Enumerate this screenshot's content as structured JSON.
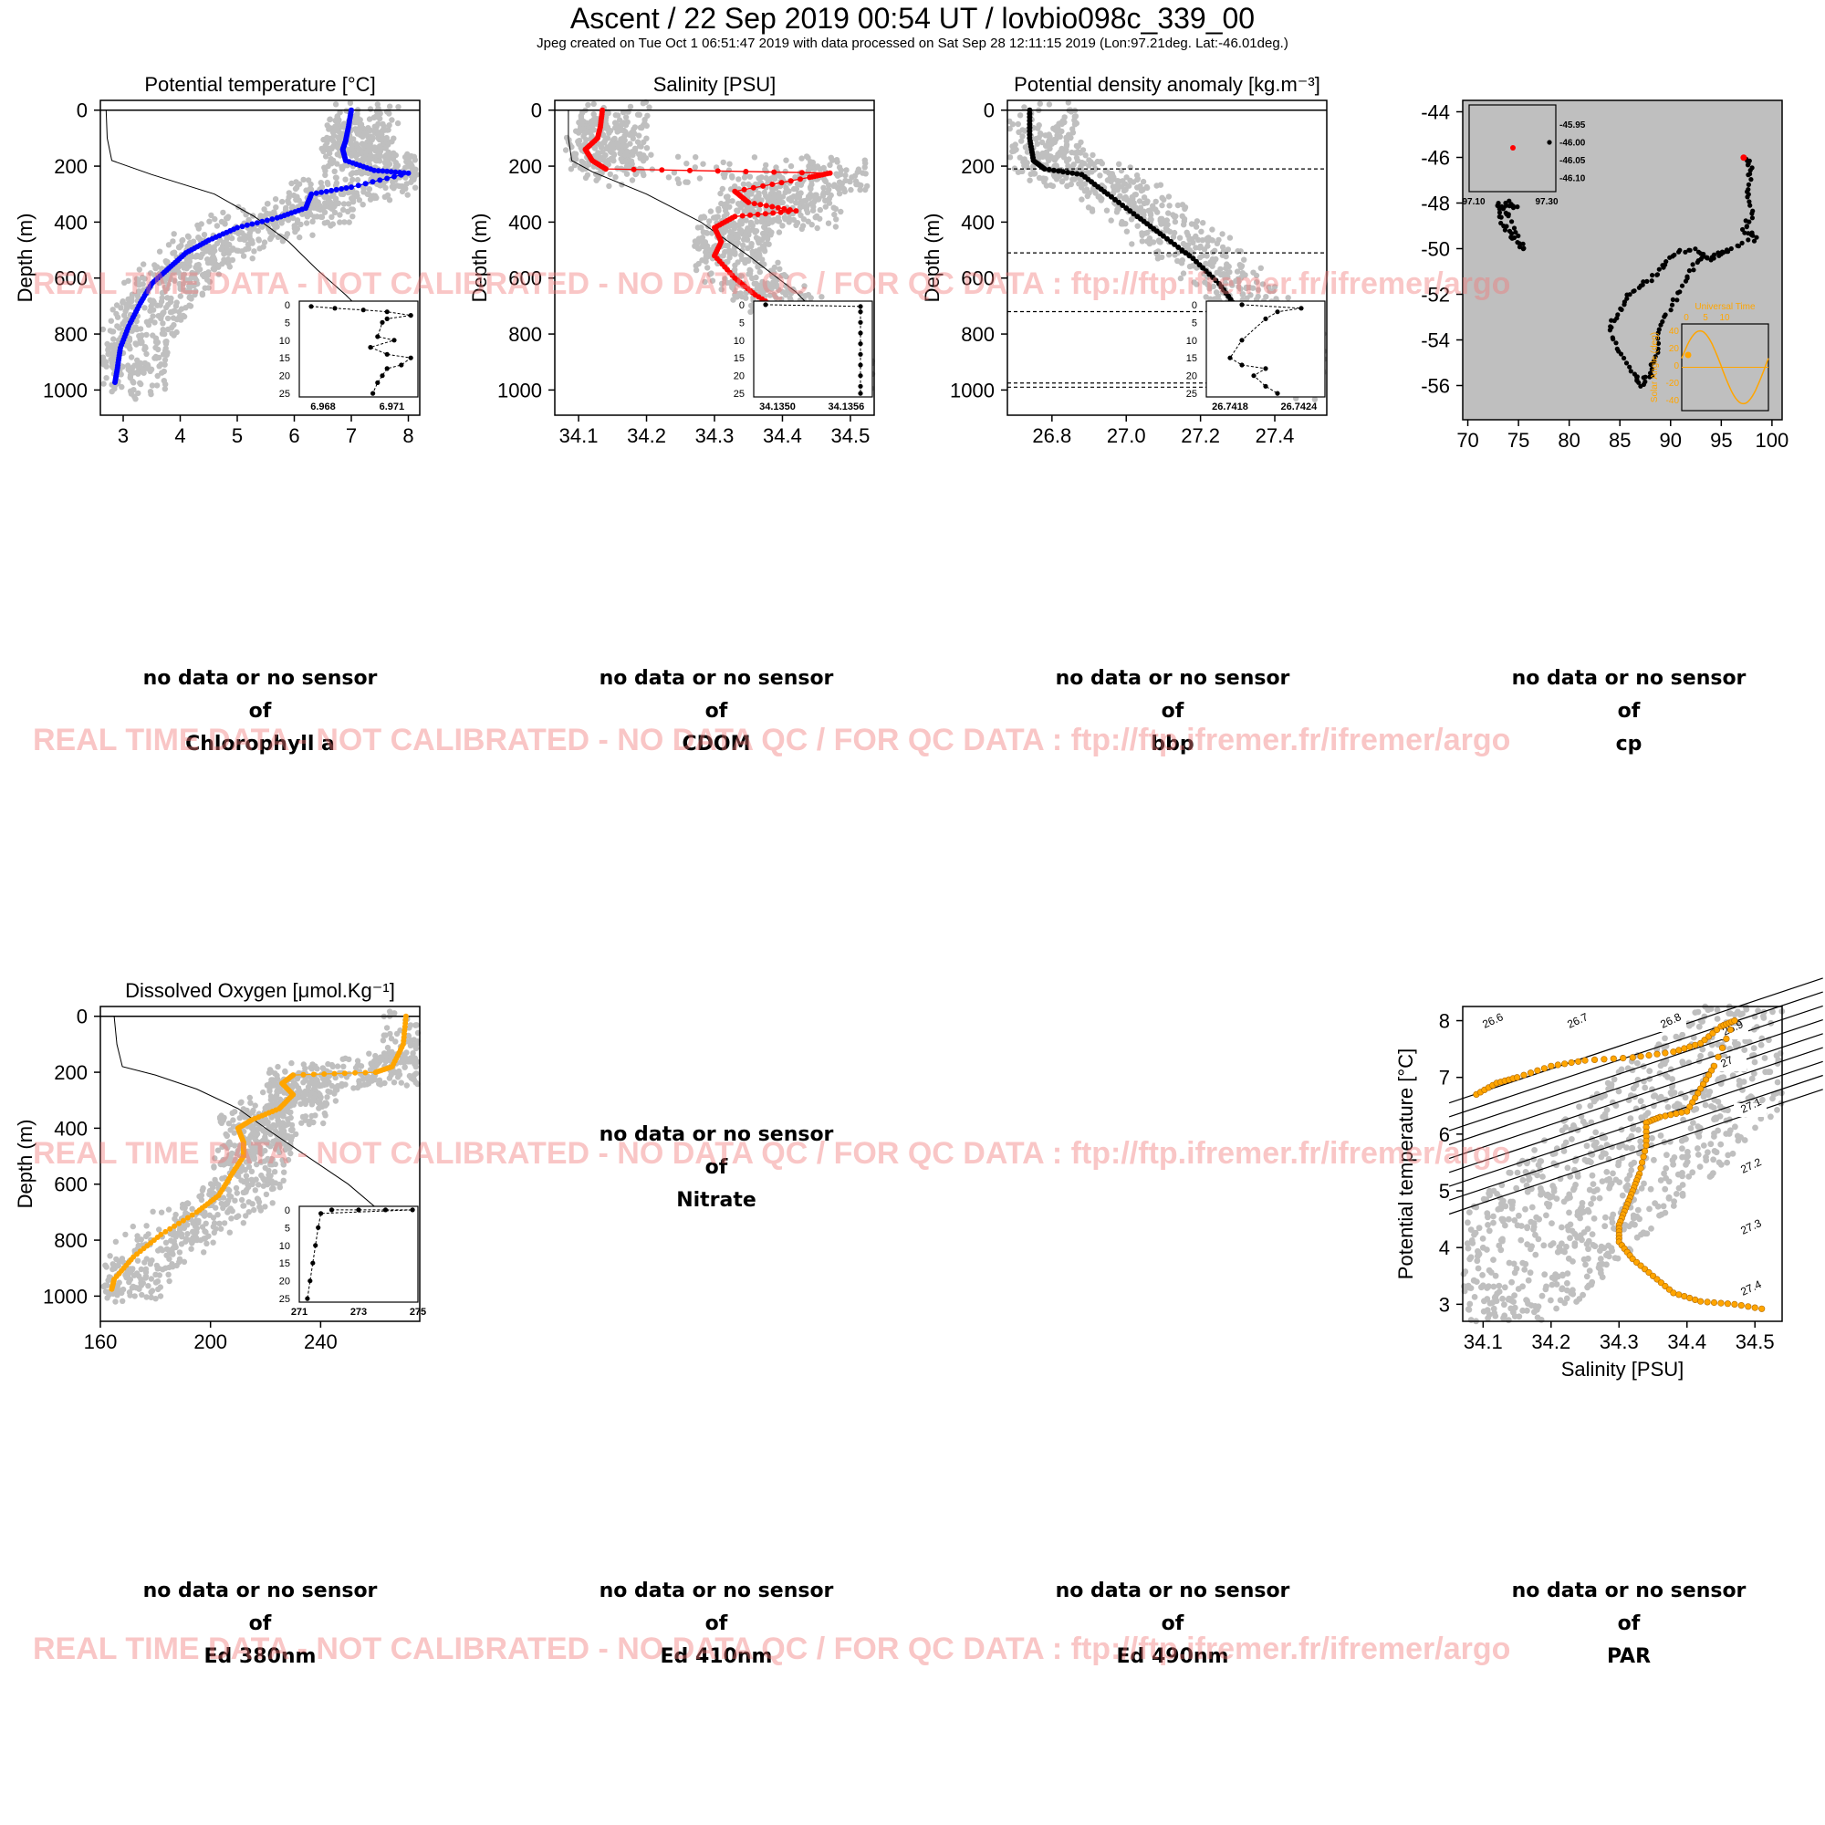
{
  "header": {
    "title": "Ascent / 22 Sep 2019 00:54 UT /  lovbio098c_339_00",
    "subtitle": "Jpeg created on Tue Oct  1 06:51:47 2019 with data processed on Sat Sep 28 12:11:15 2019 (Lon:97.21deg. Lat:-46.01deg.)"
  },
  "watermark": "REAL TIME DATA - NOT CALIBRATED - NO DATA QC   /  FOR QC DATA : ftp://ftp.ifremer.fr/ifremer/argo",
  "no_data": {
    "line1": "no data or no sensor",
    "line2": "of",
    "params": [
      "Chlorophyll a",
      "CDOM",
      "bbp",
      "cp",
      "Nitrate",
      "Ed 380nm",
      "Ed 410nm",
      "Ed 490nm",
      "PAR"
    ]
  },
  "colors": {
    "background": "#bfbfbf",
    "temperature": "#0000ff",
    "salinity": "#ff0000",
    "density": "#000000",
    "oxygen": "#ffa500",
    "watermark": "#f08080"
  },
  "chart_data": [
    {
      "id": "temp",
      "type": "scatter",
      "title": "Potential temperature [°C]",
      "ylabel": "Depth (m)",
      "xlim": [
        2.6,
        8.2
      ],
      "ylim": [
        1090,
        -35
      ],
      "ydir": "down",
      "xticks": [
        3,
        4,
        5,
        6,
        7,
        8
      ],
      "xticklabels": [
        "3",
        "4",
        "5",
        "6",
        "7",
        "8"
      ],
      "yticks": [
        0,
        200,
        400,
        600,
        800,
        1000
      ],
      "yticklabels": [
        "0",
        "200",
        "400",
        "600",
        "800",
        "1000"
      ],
      "color": "#0000ff",
      "profile": [
        [
          7.0,
          0
        ],
        [
          6.95,
          60
        ],
        [
          6.9,
          110
        ],
        [
          6.85,
          140
        ],
        [
          6.9,
          180
        ],
        [
          7.4,
          215
        ],
        [
          8.0,
          225
        ],
        [
          7.0,
          275
        ],
        [
          6.3,
          300
        ],
        [
          6.2,
          350
        ],
        [
          5.7,
          385
        ],
        [
          5.0,
          420
        ],
        [
          4.5,
          465
        ],
        [
          4.1,
          510
        ],
        [
          3.8,
          565
        ],
        [
          3.5,
          620
        ],
        [
          3.3,
          690
        ],
        [
          3.1,
          770
        ],
        [
          2.95,
          850
        ],
        [
          2.9,
          920
        ],
        [
          2.85,
          980
        ]
      ],
      "background": {
        "type": "cloud",
        "description_points": [
          [
            7.0,
            0
          ],
          [
            7.5,
            100
          ],
          [
            6.5,
            200
          ],
          [
            5.5,
            350
          ],
          [
            4.5,
            450
          ],
          [
            3.6,
            600
          ],
          [
            3.1,
            800
          ],
          [
            2.9,
            1000
          ]
        ]
      },
      "reference_line": [
        [
          2.7,
          0
        ],
        [
          2.72,
          100
        ],
        [
          2.8,
          180
        ],
        [
          3.5,
          230
        ],
        [
          4.6,
          300
        ],
        [
          5.3,
          380
        ],
        [
          5.9,
          470
        ],
        [
          6.4,
          570
        ],
        [
          6.9,
          660
        ],
        [
          7.4,
          760
        ]
      ],
      "inset": {
        "xlim": [
          6.9675,
          6.9725
        ],
        "ylim": [
          26,
          -1
        ],
        "xticklabels": [
          "6.968",
          "6.971"
        ],
        "yticklabels": [
          "0",
          "5",
          "10",
          "15",
          "20",
          "25"
        ],
        "points": [
          [
            6.968,
            0.5
          ],
          [
            6.969,
            1
          ],
          [
            6.9702,
            1.5
          ],
          [
            6.9712,
            2
          ],
          [
            6.9722,
            3
          ],
          [
            6.9712,
            4
          ],
          [
            6.971,
            5
          ],
          [
            6.9708,
            9
          ],
          [
            6.9715,
            10
          ],
          [
            6.9705,
            12
          ],
          [
            6.9712,
            14
          ],
          [
            6.9722,
            15
          ],
          [
            6.9718,
            17
          ],
          [
            6.9712,
            18
          ],
          [
            6.971,
            20
          ],
          [
            6.9708,
            22
          ],
          [
            6.9706,
            25
          ]
        ]
      }
    },
    {
      "id": "sal",
      "type": "scatter",
      "title": "Salinity [PSU]",
      "ylabel": "Depth (m)",
      "xlim": [
        34.065,
        34.535
      ],
      "ylim": [
        1090,
        -35
      ],
      "ydir": "down",
      "xticks": [
        34.1,
        34.2,
        34.3,
        34.4,
        34.5
      ],
      "xticklabels": [
        "34.1",
        "34.2",
        "34.3",
        "34.4",
        "34.5"
      ],
      "yticks": [
        0,
        200,
        400,
        600,
        800,
        1000
      ],
      "yticklabels": [
        "0",
        "200",
        "400",
        "600",
        "800",
        "1000"
      ],
      "color": "#ff0000",
      "profile": [
        [
          34.135,
          0
        ],
        [
          34.132,
          60
        ],
        [
          34.128,
          100
        ],
        [
          34.11,
          140
        ],
        [
          34.12,
          180
        ],
        [
          34.14,
          210
        ],
        [
          34.47,
          225
        ],
        [
          34.44,
          240
        ],
        [
          34.33,
          290
        ],
        [
          34.35,
          330
        ],
        [
          34.42,
          360
        ],
        [
          34.33,
          380
        ],
        [
          34.3,
          420
        ],
        [
          34.31,
          470
        ],
        [
          34.3,
          520
        ],
        [
          34.33,
          600
        ],
        [
          34.36,
          660
        ],
        [
          34.4,
          720
        ],
        [
          34.44,
          800
        ],
        [
          34.48,
          890
        ],
        [
          34.52,
          970
        ]
      ],
      "background": {
        "type": "cloud"
      },
      "reference_line": [
        [
          34.085,
          0
        ],
        [
          34.085,
          100
        ],
        [
          34.09,
          180
        ],
        [
          34.12,
          220
        ],
        [
          34.2,
          300
        ],
        [
          34.28,
          400
        ],
        [
          34.35,
          520
        ],
        [
          34.42,
          650
        ],
        [
          34.48,
          800
        ],
        [
          34.53,
          950
        ]
      ],
      "inset": {
        "xlim": [
          34.1348,
          34.1358
        ],
        "ylim": [
          26,
          -1
        ],
        "xticklabels": [
          "34.1350",
          "34.1356"
        ],
        "yticklabels": [
          "0",
          "5",
          "10",
          "15",
          "20",
          "25"
        ],
        "points": [
          [
            34.1349,
            0
          ],
          [
            34.1357,
            0.5
          ],
          [
            34.1357,
            2
          ],
          [
            34.1357,
            5
          ],
          [
            34.1357,
            8
          ],
          [
            34.1357,
            11
          ],
          [
            34.1357,
            14
          ],
          [
            34.1357,
            17
          ],
          [
            34.1357,
            20
          ],
          [
            34.1357,
            23
          ],
          [
            34.1357,
            25
          ]
        ]
      }
    },
    {
      "id": "dens",
      "type": "scatter",
      "title": "Potential density anomaly [kg.m⁻³]",
      "ylabel": "Depth (m)",
      "xlim": [
        26.68,
        27.54
      ],
      "ylim": [
        1090,
        -35
      ],
      "ydir": "down",
      "xticks": [
        26.8,
        27.0,
        27.2,
        27.4
      ],
      "xticklabels": [
        "26.8",
        "27.0",
        "27.2",
        "27.4"
      ],
      "yticks": [
        0,
        200,
        400,
        600,
        800,
        1000
      ],
      "yticklabels": [
        "0",
        "200",
        "400",
        "600",
        "800",
        "1000"
      ],
      "color": "#000000",
      "profile": [
        [
          26.74,
          0
        ],
        [
          26.74,
          100
        ],
        [
          26.75,
          180
        ],
        [
          26.78,
          210
        ],
        [
          26.88,
          230
        ],
        [
          26.95,
          300
        ],
        [
          27.03,
          380
        ],
        [
          27.1,
          450
        ],
        [
          27.18,
          530
        ],
        [
          27.25,
          620
        ],
        [
          27.3,
          710
        ],
        [
          27.36,
          790
        ],
        [
          27.42,
          870
        ],
        [
          27.47,
          940
        ],
        [
          27.51,
          985
        ]
      ],
      "mixed_layer_depths": [
        210,
        510,
        720,
        975,
        990
      ],
      "background": {
        "type": "cloud"
      },
      "inset": {
        "xlim": [
          26.7416,
          26.7426
        ],
        "ylim": [
          26,
          -1
        ],
        "xticklabels": [
          "26.7418",
          "26.7424"
        ],
        "yticklabels": [
          "0",
          "5",
          "10",
          "15",
          "20",
          "25"
        ],
        "points": [
          [
            26.7419,
            0
          ],
          [
            26.7424,
            1
          ],
          [
            26.7422,
            2
          ],
          [
            26.7421,
            4
          ],
          [
            26.7419,
            10
          ],
          [
            26.7418,
            15
          ],
          [
            26.7419,
            17
          ],
          [
            26.7421,
            18
          ],
          [
            26.742,
            20
          ],
          [
            26.7421,
            23
          ],
          [
            26.7422,
            25
          ]
        ]
      }
    },
    {
      "id": "map",
      "type": "scatter",
      "xlim": [
        69.5,
        101
      ],
      "ylim": [
        -57.5,
        -43.5
      ],
      "xticks": [
        70,
        75,
        80,
        85,
        90,
        95,
        100
      ],
      "xticklabels": [
        "70",
        "75",
        "80",
        "85",
        "90",
        "95",
        "100"
      ],
      "yticks": [
        -44,
        -46,
        -48,
        -50,
        -52,
        -54,
        -56
      ],
      "yticklabels": [
        "-44",
        "-46",
        "-48",
        "-50",
        "-52",
        "-54",
        "-56"
      ],
      "track": [
        [
          97.5,
          -46.0
        ],
        [
          98,
          -46.5
        ],
        [
          97.5,
          -47.5
        ],
        [
          98,
          -48.5
        ],
        [
          97.2,
          -49.2
        ],
        [
          98.5,
          -49.5
        ],
        [
          96,
          -50
        ],
        [
          94,
          -50.5
        ],
        [
          92,
          -50
        ],
        [
          90,
          -50.3
        ],
        [
          89,
          -51
        ],
        [
          87.5,
          -51.5
        ],
        [
          86,
          -52
        ],
        [
          85,
          -52.7
        ],
        [
          84,
          -53.5
        ],
        [
          85,
          -54.5
        ],
        [
          86.5,
          -55.5
        ],
        [
          87,
          -56
        ],
        [
          88,
          -55.5
        ],
        [
          88.5,
          -54.8
        ],
        [
          89,
          -53.5
        ],
        [
          90,
          -52.5
        ],
        [
          91.5,
          -51.5
        ],
        [
          92.5,
          -50.5
        ],
        [
          94,
          -50.3
        ],
        [
          96,
          -50.1
        ]
      ],
      "track_west": [
        [
          73,
          -48
        ],
        [
          73.5,
          -49
        ],
        [
          74.5,
          -49.5
        ],
        [
          75.5,
          -50
        ],
        [
          74,
          -48.5
        ],
        [
          73.2,
          -48.2
        ],
        [
          74,
          -48
        ],
        [
          75,
          -48.2
        ]
      ],
      "last_position": [
        97.21,
        -46.01
      ],
      "inset_zoom": {
        "xticklabels": [
          "97.10",
          "97.30"
        ],
        "yticklabels": [
          "-45.95",
          "-46.00",
          "-46.05",
          "-46.10"
        ]
      },
      "inset_sun": {
        "title": "Universal Time",
        "ylabel": "Solar Angle (deg)",
        "xticklabels": [
          "0",
          "5",
          "10"
        ],
        "yticklabels": [
          "40",
          "20",
          "0",
          "-20",
          "-40"
        ]
      }
    },
    {
      "id": "oxy",
      "type": "scatter",
      "title": "Dissolved Oxygen [μmol.Kg⁻¹]",
      "ylabel": "Depth (m)",
      "xlim": [
        160,
        276
      ],
      "ylim": [
        1090,
        -35
      ],
      "ydir": "down",
      "xticks": [
        160,
        200,
        240
      ],
      "xticklabels": [
        "160",
        "200",
        "240"
      ],
      "yticks": [
        0,
        200,
        400,
        600,
        800,
        1000
      ],
      "yticklabels": [
        "0",
        "200",
        "400",
        "600",
        "800",
        "1000"
      ],
      "color": "#ffa500",
      "profile": [
        [
          271,
          0
        ],
        [
          270,
          100
        ],
        [
          266,
          180
        ],
        [
          260,
          200
        ],
        [
          230,
          210
        ],
        [
          226,
          240
        ],
        [
          230,
          280
        ],
        [
          225,
          330
        ],
        [
          215,
          370
        ],
        [
          210,
          400
        ],
        [
          212,
          450
        ],
        [
          212,
          500
        ],
        [
          208,
          560
        ],
        [
          203,
          640
        ],
        [
          195,
          700
        ],
        [
          182,
          780
        ],
        [
          172,
          860
        ],
        [
          165,
          940
        ],
        [
          164,
          980
        ]
      ],
      "background": {
        "type": "cloud"
      },
      "reference_line": [
        [
          165,
          0
        ],
        [
          166,
          100
        ],
        [
          168,
          180
        ],
        [
          180,
          210
        ],
        [
          195,
          260
        ],
        [
          210,
          330
        ],
        [
          220,
          400
        ],
        [
          235,
          500
        ],
        [
          250,
          600
        ],
        [
          262,
          700
        ],
        [
          274,
          800
        ]
      ],
      "inset": {
        "xlim": [
          270.8,
          275.2
        ],
        "ylim": [
          26,
          -1
        ],
        "xticklabels": [
          "271",
          "273",
          "275"
        ],
        "yticklabels": [
          "0",
          "5",
          "10",
          "15",
          "20",
          "25"
        ],
        "points": [
          [
            272,
            0
          ],
          [
            273,
            0
          ],
          [
            274,
            0
          ],
          [
            275,
            0
          ],
          [
            271.6,
            1
          ],
          [
            271.5,
            5
          ],
          [
            271.4,
            10
          ],
          [
            271.3,
            15
          ],
          [
            271.2,
            20
          ],
          [
            271.1,
            25
          ]
        ]
      }
    },
    {
      "id": "ts",
      "type": "scatter",
      "xlabel": "Salinity [PSU]",
      "ylabel": "Potential temperature [°C]",
      "xlim": [
        34.07,
        34.54
      ],
      "ylim": [
        2.7,
        8.25
      ],
      "xticks": [
        34.1,
        34.2,
        34.3,
        34.4,
        34.5
      ],
      "xticklabels": [
        "34.1",
        "34.2",
        "34.3",
        "34.4",
        "34.5"
      ],
      "yticks": [
        3,
        4,
        5,
        6,
        7,
        8
      ],
      "yticklabels": [
        "3",
        "4",
        "5",
        "6",
        "7",
        "8"
      ],
      "color": "#ffa500",
      "isopycnals": [
        26.6,
        26.7,
        26.8,
        26.9,
        27,
        27.1,
        27.2,
        27.3,
        27.4
      ],
      "isopycnal_labels": [
        "26.6",
        "26.7",
        "26.8",
        "26.9",
        "27",
        "27.1",
        "27.2",
        "27.3",
        "27.4"
      ],
      "profile": [
        [
          34.09,
          6.7
        ],
        [
          34.12,
          6.9
        ],
        [
          34.15,
          7.0
        ],
        [
          34.2,
          7.2
        ],
        [
          34.25,
          7.3
        ],
        [
          34.32,
          7.35
        ],
        [
          34.38,
          7.45
        ],
        [
          34.42,
          7.6
        ],
        [
          34.45,
          7.9
        ],
        [
          34.47,
          8.0
        ],
        [
          34.44,
          7.2
        ],
        [
          34.42,
          6.8
        ],
        [
          34.4,
          6.4
        ],
        [
          34.36,
          6.3
        ],
        [
          34.34,
          6.2
        ],
        [
          34.34,
          5.8
        ],
        [
          34.33,
          5.3
        ],
        [
          34.32,
          5.0
        ],
        [
          34.31,
          4.7
        ],
        [
          34.3,
          4.4
        ],
        [
          34.3,
          4.1
        ],
        [
          34.32,
          3.8
        ],
        [
          34.35,
          3.5
        ],
        [
          34.38,
          3.2
        ],
        [
          34.42,
          3.05
        ],
        [
          34.47,
          3.0
        ],
        [
          34.52,
          2.9
        ]
      ],
      "background": {
        "type": "cloud"
      }
    }
  ]
}
